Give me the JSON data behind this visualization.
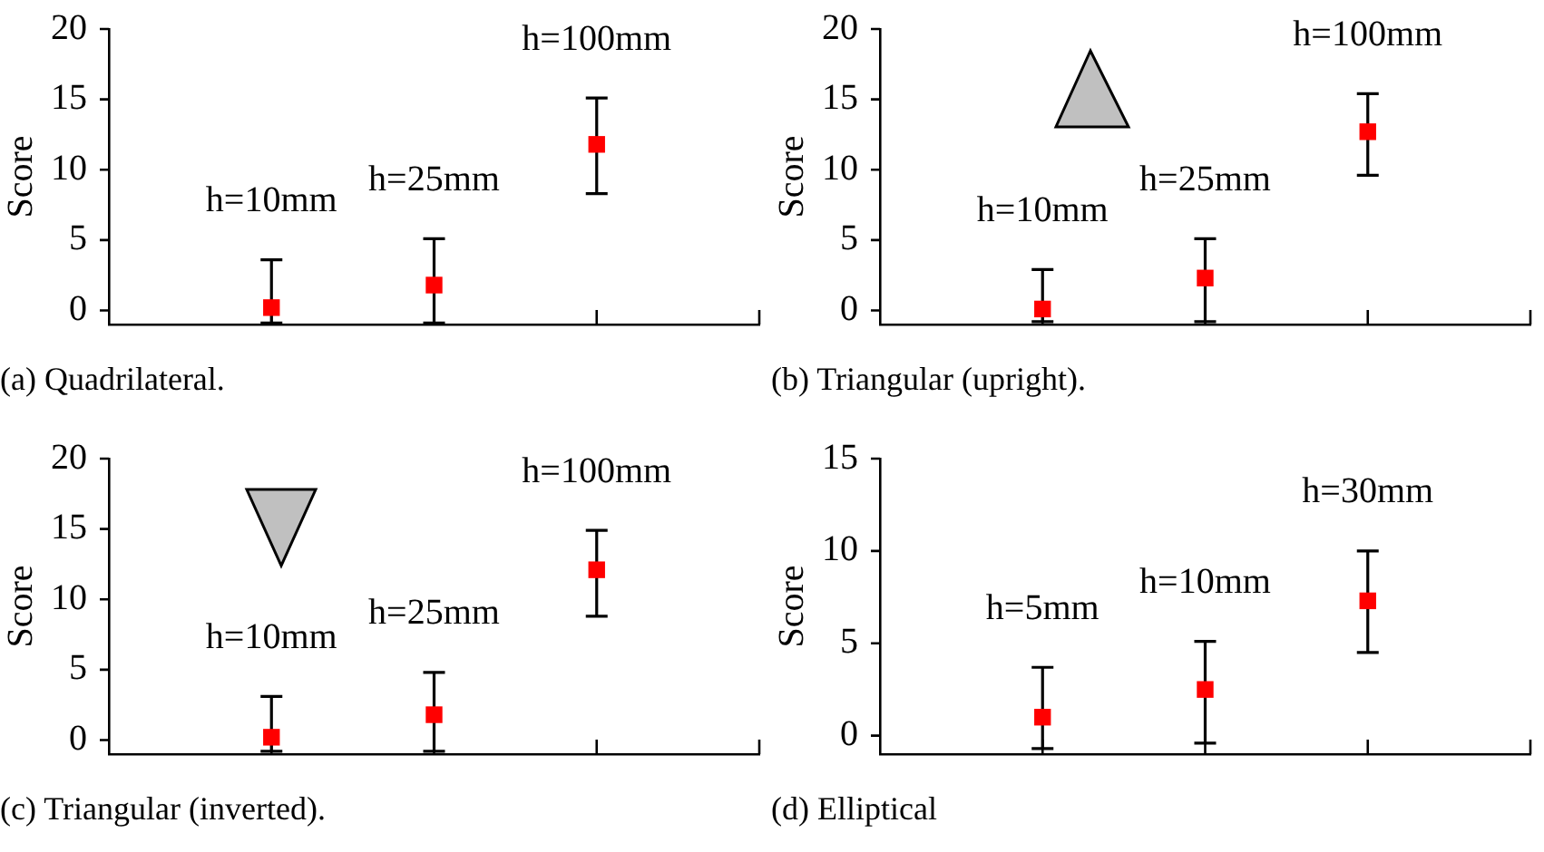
{
  "chart_data": [
    {
      "type": "scatter",
      "title": "(a) Quadrilateral.",
      "ylabel": "Score",
      "categories": [
        null,
        null,
        null,
        null,
        null
      ],
      "values": [
        null,
        0.2,
        1.8,
        11.8,
        null
      ],
      "errors": [
        null,
        [
          -0.9,
          3.6
        ],
        [
          -0.9,
          5.1
        ],
        [
          8.3,
          15.1
        ],
        null
      ],
      "color": "#ff0000",
      "marker": "square",
      "ylim": [
        -1,
        20
      ],
      "yticks": [
        0,
        5,
        10,
        15,
        20
      ],
      "grid": false,
      "legend": false,
      "tick_labels": "y",
      "annotations": [
        "h=10mm",
        "h=25mm",
        "h=100mm"
      ]
    },
    {
      "type": "scatter",
      "title": "(b) Triangular (upright).",
      "ylabel": "Score",
      "categories": [
        null,
        null,
        null,
        null,
        null
      ],
      "values": [
        null,
        0.1,
        2.3,
        12.7,
        null
      ],
      "errors": [
        null,
        [
          -0.8,
          2.9
        ],
        [
          -0.8,
          5.1
        ],
        [
          9.6,
          15.4
        ],
        null
      ],
      "color": "#ff0000",
      "marker": "square",
      "ylim": [
        -1,
        20
      ],
      "yticks": [
        0,
        5,
        10,
        15,
        20
      ],
      "grid": false,
      "legend": false,
      "tick_labels": "y",
      "annotations": [
        "h=10mm",
        "h=25mm",
        "h=100mm"
      ]
    },
    {
      "type": "scatter",
      "title": "(c) Triangular (inverted).",
      "ylabel": "Score",
      "categories": [
        null,
        null,
        null,
        null,
        null
      ],
      "values": [
        null,
        0.2,
        1.8,
        12.1,
        null
      ],
      "errors": [
        null,
        [
          -0.8,
          3.1
        ],
        [
          -0.8,
          4.8
        ],
        [
          8.8,
          14.9
        ],
        null
      ],
      "color": "#ff0000",
      "marker": "square",
      "ylim": [
        -1,
        20
      ],
      "yticks": [
        0,
        5,
        10,
        15,
        20
      ],
      "grid": false,
      "legend": false,
      "tick_labels": "y",
      "annotations": [
        "h=10mm",
        "h=25mm",
        "h=100mm"
      ]
    },
    {
      "type": "scatter",
      "title": "(d) Elliptical",
      "ylabel": "Score",
      "categories": [
        null,
        null,
        null,
        null,
        null
      ],
      "values": [
        null,
        1.0,
        2.5,
        7.3,
        null
      ],
      "errors": [
        null,
        [
          -0.7,
          3.7
        ],
        [
          -0.4,
          5.1
        ],
        [
          4.5,
          10.0
        ],
        null
      ],
      "color": "#ff0000",
      "marker": "square",
      "ylim": [
        -1,
        15
      ],
      "yticks": [
        0,
        5,
        10,
        15
      ],
      "grid": false,
      "legend": false,
      "tick_labels": "y",
      "annotations": [
        "h=5mm",
        "h=10mm",
        "h=30mm"
      ]
    }
  ]
}
